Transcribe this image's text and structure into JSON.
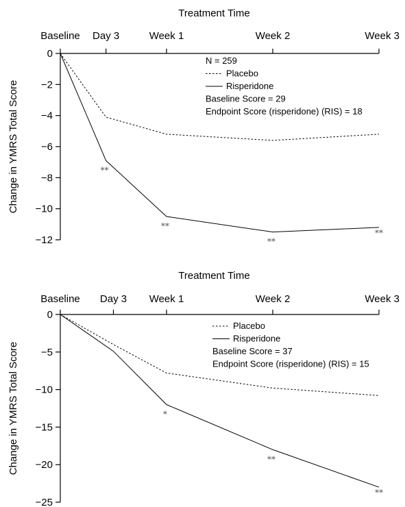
{
  "chart_data": [
    {
      "type": "line",
      "title": "Treatment Time",
      "xlabel": "Treatment Time",
      "ylabel": "Change in YMRS Total Score",
      "categories": [
        "Baseline",
        "Day 3",
        "Week 1",
        "Week 2",
        "Week 3"
      ],
      "x_weeks": [
        0,
        0.43,
        1,
        2,
        3
      ],
      "ylim": [
        -12,
        0
      ],
      "yticks": [
        0,
        -2,
        -4,
        -6,
        -8,
        -10,
        -12
      ],
      "ytick_labels": [
        "0",
        "−2",
        "−4",
        "−6",
        "−8",
        "−10",
        "−12"
      ],
      "series": [
        {
          "name": "Placebo",
          "style": "dotted",
          "values": [
            0,
            -4.1,
            -5.2,
            -5.6,
            -5.2
          ]
        },
        {
          "name": "Risperidone",
          "style": "solid",
          "values": [
            0,
            -6.9,
            -10.5,
            -11.5,
            -11.2
          ]
        }
      ],
      "legend": {
        "header": "N = 259",
        "notes": [
          "Baseline Score = 29",
          "Endpoint Score (risperidone) (RIS) = 18"
        ]
      },
      "annotations": [
        {
          "category": "Day 3",
          "y": -6.9,
          "text": "**"
        },
        {
          "category": "Week 1",
          "y": -10.5,
          "text": "**"
        },
        {
          "category": "Week 2",
          "y": -11.5,
          "text": "**"
        },
        {
          "category": "Week 3",
          "y": -11.2,
          "text": "**"
        }
      ]
    },
    {
      "type": "line",
      "title": "Treatment Time",
      "xlabel": "Treatment Time",
      "ylabel": "Change in YMRS Total Score",
      "categories": [
        "Baseline",
        "Day 3",
        "Week 1",
        "Week 2",
        "Week 3"
      ],
      "x_weeks": [
        0,
        0.5,
        1,
        2,
        3
      ],
      "ylim": [
        -25,
        0
      ],
      "yticks": [
        0,
        -5,
        -10,
        -15,
        -20,
        -25
      ],
      "ytick_labels": [
        "0",
        "−5",
        "−10",
        "−15",
        "−20",
        "−25"
      ],
      "series": [
        {
          "name": "Placebo",
          "style": "dotted",
          "values": [
            0,
            -4.0,
            -7.8,
            -9.8,
            -10.8
          ]
        },
        {
          "name": "Risperidone",
          "style": "solid",
          "values": [
            0,
            -4.9,
            -12.0,
            -18.0,
            -23.0
          ]
        }
      ],
      "legend": {
        "header": "",
        "notes": [
          "Baseline Score = 37",
          "Endpoint Score (risperidone) (RIS) = 15"
        ]
      },
      "annotations": [
        {
          "category": "Week 1",
          "y": -12.0,
          "text": "*"
        },
        {
          "category": "Week 2",
          "y": -18.0,
          "text": "**"
        },
        {
          "category": "Week 3",
          "y": -23.0,
          "text": "**"
        }
      ]
    }
  ]
}
